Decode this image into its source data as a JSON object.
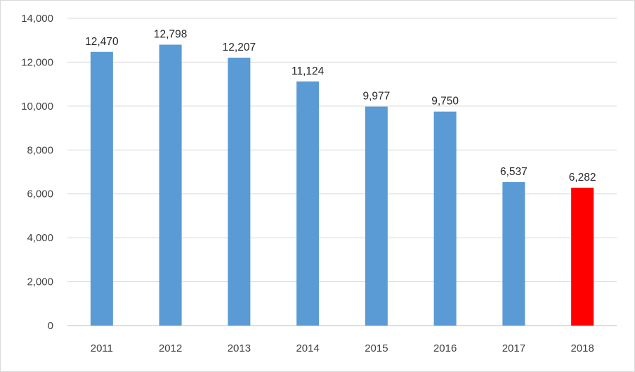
{
  "chart_data": {
    "type": "bar",
    "categories": [
      "2011",
      "2012",
      "2013",
      "2014",
      "2015",
      "2016",
      "2017",
      "2018"
    ],
    "values": [
      12470,
      12798,
      12207,
      11124,
      9977,
      9750,
      6537,
      6282
    ],
    "data_labels": [
      "12,470",
      "12,798",
      "12,207",
      "11,124",
      "9,977",
      "9,750",
      "6,537",
      "6,282"
    ],
    "y_ticks": [
      "0",
      "2,000",
      "4,000",
      "6,000",
      "8,000",
      "10,000",
      "12,000",
      "14,000"
    ],
    "y_tick_values": [
      0,
      2000,
      4000,
      6000,
      8000,
      10000,
      12000,
      14000
    ],
    "ylim": [
      0,
      14000
    ],
    "grid": true,
    "legend": "none",
    "bar_colors": [
      "#5b9bd5",
      "#5b9bd5",
      "#5b9bd5",
      "#5b9bd5",
      "#5b9bd5",
      "#5b9bd5",
      "#5b9bd5",
      "#ff0000"
    ]
  }
}
